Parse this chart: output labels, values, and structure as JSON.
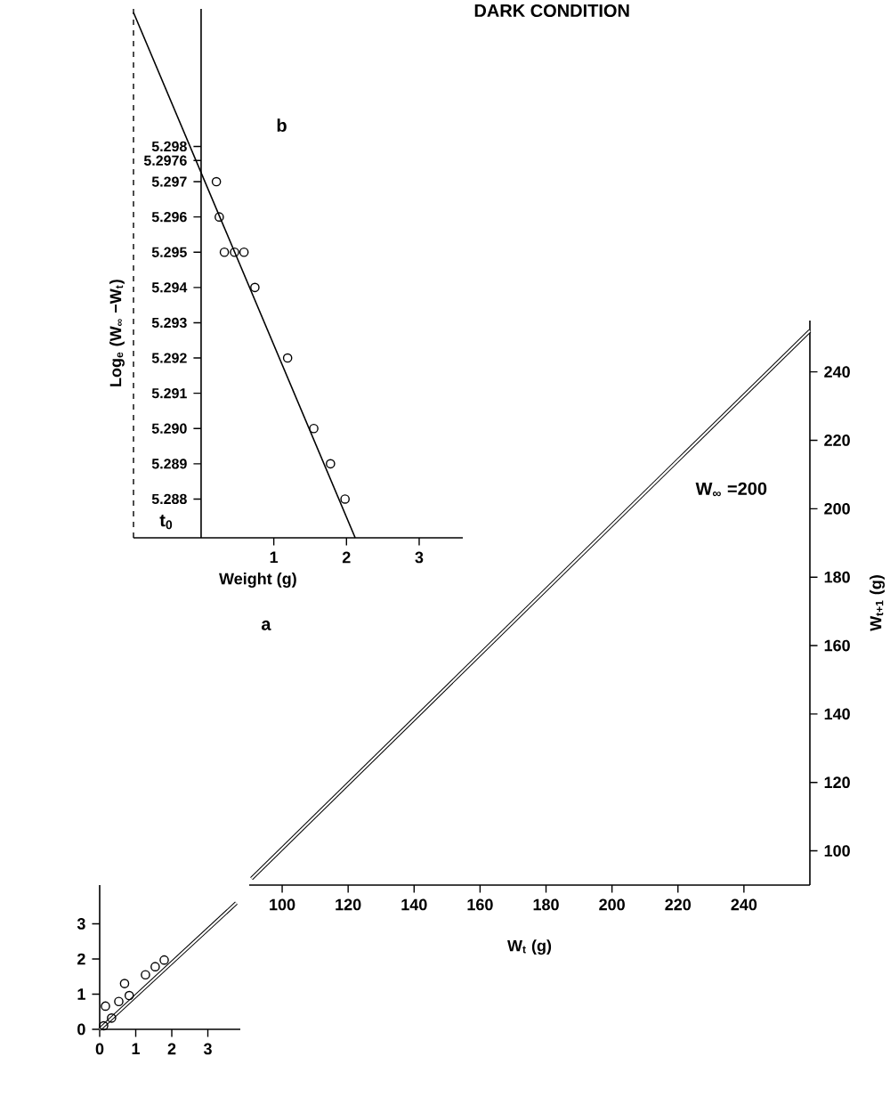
{
  "chart_data": [
    {
      "type": "scatter",
      "xlim": [
        0,
        3.9
      ],
      "ylim": [
        0,
        4.1
      ],
      "xticks": [
        0,
        1,
        2,
        3
      ],
      "yticks": [
        0,
        1,
        2,
        3
      ],
      "series": [
        {
          "color": "#000000",
          "marker": "circle",
          "x": [
            0.11,
            0.16,
            0.33,
            0.53,
            0.69,
            0.82,
            1.27,
            1.54,
            1.79
          ],
          "values": [
            0.1,
            0.66,
            0.32,
            0.79,
            1.3,
            0.96,
            1.55,
            1.78,
            1.97
          ]
        },
        {
          "type": "line",
          "color": "#000000",
          "marker": "none",
          "x": [
            0,
            3.79
          ],
          "values": [
            0,
            3.59
          ]
        }
      ]
    },
    {
      "type": "line",
      "title": "DARK CONDITION",
      "xlabel": "W$_{t}$ (g)",
      "ylabel": "W$_{t+1}$ (g)",
      "xlim": [
        90,
        260
      ],
      "ylim": [
        90,
        255
      ],
      "xticks": [
        100,
        120,
        140,
        160,
        180,
        200,
        220,
        240
      ],
      "yticks": [
        100,
        120,
        140,
        160,
        180,
        200,
        220,
        240
      ],
      "annotations": [
        "a",
        "W$_{∞}$ =200"
      ],
      "series": [
        {
          "color": "#000000",
          "marker": "none",
          "x": [
            90.7,
            260
          ],
          "values": [
            91.9,
            252
          ]
        }
      ]
    },
    {
      "type": "scatter",
      "xlabel": "Weight (g)",
      "ylabel": "Log$_{e}$ (W$_{∞}$ −W$_{t}$)",
      "xlim": [
        -0.93,
        3.6
      ],
      "ylim": [
        5.2869,
        5.3019
      ],
      "xticks": [
        1,
        2,
        3
      ],
      "yticks": [
        5.288,
        5.289,
        {
          "value": 5.29,
          "label": "5.290"
        },
        5.291,
        5.292,
        5.293,
        5.294,
        5.295,
        5.296,
        5.297,
        5.2976,
        5.298
      ],
      "annotations": [
        "b",
        "t$_{0}$"
      ],
      "ref_lines": [
        {
          "axis": "x",
          "value": -0.93,
          "line_style": "dashed",
          "color": "#000000"
        }
      ],
      "series": [
        {
          "color": "#000000",
          "marker": "circle",
          "x": [
            0.21,
            0.25,
            0.32,
            0.46,
            0.59,
            0.74,
            1.19,
            1.55,
            1.78,
            1.98
          ],
          "values": [
            5.297,
            5.296,
            5.295,
            5.295,
            5.295,
            5.294,
            5.292,
            5.29,
            5.289,
            5.288
          ]
        },
        {
          "type": "line",
          "color": "#000000",
          "marker": "none",
          "x": [
            -0.93,
            2.12
          ],
          "values": [
            5.3018,
            5.2869
          ]
        }
      ]
    }
  ]
}
